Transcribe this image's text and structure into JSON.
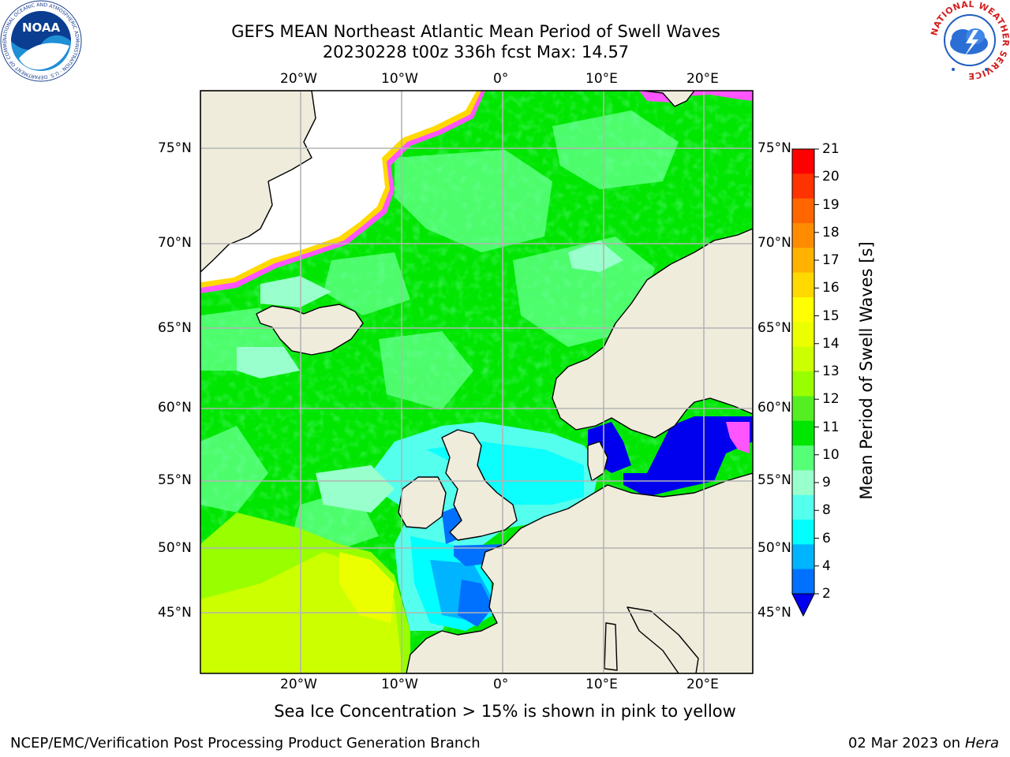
{
  "header": {
    "title_line1": "GEFS MEAN Northeast Atlantic Mean Period of Swell Waves",
    "title_line2": "20230228 t00z 336h fcst   Max: 14.57"
  },
  "logos": {
    "noaa_text": "NOAA",
    "noaa_ring_text": "NATIONAL OCEANIC AND ATMOSPHERIC ADMINISTRATION · U.S. DEPARTMENT OF COMMERCE",
    "nws_ring_text": "NATIONAL WEATHER SERVICE"
  },
  "map": {
    "lon_labels": [
      "20°W",
      "10°W",
      "0°",
      "10°E",
      "20°E"
    ],
    "lat_labels_left": [
      "75°N",
      "70°N",
      "65°N",
      "60°N",
      "55°N",
      "50°N",
      "45°N"
    ],
    "lat_labels_right": [
      "75°N",
      "70°N",
      "65°N",
      "60°N",
      "55°N",
      "50°N",
      "45°N"
    ],
    "colors": {
      "land": "#efecdc",
      "ice": "#ffffff",
      "grid": "#b4b4b4",
      "coast": "#000000"
    }
  },
  "colorbar": {
    "title": "Mean Period of Swell Waves [s]",
    "tick_labels": [
      "21",
      "20",
      "19",
      "18",
      "17",
      "16",
      "15",
      "14",
      "13",
      "12",
      "11",
      "10",
      "9",
      "8",
      "6",
      "4",
      "2"
    ],
    "band_colors": [
      "#ff0000",
      "#ff3300",
      "#ff6600",
      "#ff8c00",
      "#ffb300",
      "#ffd900",
      "#ffff00",
      "#ecff00",
      "#ccff00",
      "#99ff00",
      "#55ee22",
      "#00e600",
      "#55ff77",
      "#99ffcc",
      "#55ffee",
      "#00ffff",
      "#00b4ff",
      "#0070ff"
    ],
    "under_color": "#0000ee"
  },
  "caption": "Sea Ice Concentration > 15% is shown in pink to yellow",
  "footer": {
    "left": "NCEP/EMC/Verification Post Processing Product Generation Branch",
    "date": "02 Mar 2023 on",
    "machine": "Hera"
  }
}
